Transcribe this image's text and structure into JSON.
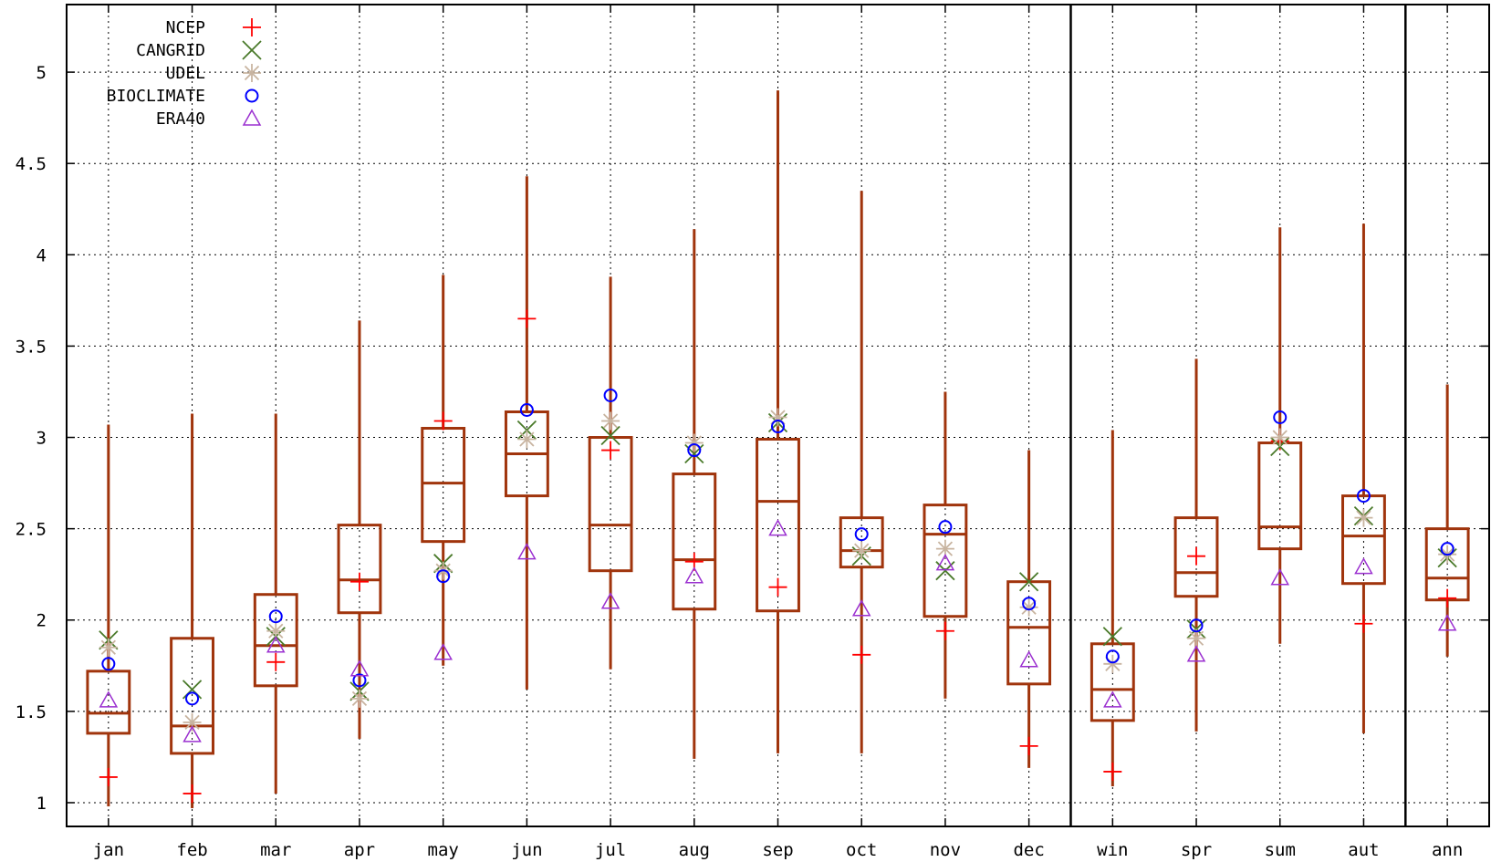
{
  "chart_data": {
    "type": "boxplot",
    "categories": [
      "jan",
      "feb",
      "mar",
      "apr",
      "may",
      "jun",
      "jul",
      "aug",
      "sep",
      "oct",
      "nov",
      "dec",
      "win",
      "spr",
      "sum",
      "aut",
      "ann"
    ],
    "separators_after": [
      "dec",
      "aut"
    ],
    "ylim": [
      0.87,
      5.37
    ],
    "yticks": [
      "1",
      "1.5",
      "2",
      "2.5",
      "3",
      "3.5",
      "4",
      "4.5",
      "5"
    ],
    "grid": true,
    "legend_position": "top-left",
    "box_color": "#a0340c",
    "boxes": [
      {
        "min": 0.98,
        "q1": 1.38,
        "median": 1.49,
        "q3": 1.72,
        "max": 3.07
      },
      {
        "min": 0.97,
        "q1": 1.27,
        "median": 1.42,
        "q3": 1.9,
        "max": 3.13
      },
      {
        "min": 1.05,
        "q1": 1.64,
        "median": 1.86,
        "q3": 2.14,
        "max": 3.13
      },
      {
        "min": 1.35,
        "q1": 2.04,
        "median": 2.22,
        "q3": 2.52,
        "max": 3.64
      },
      {
        "min": 1.75,
        "q1": 2.43,
        "median": 2.75,
        "q3": 3.05,
        "max": 3.89
      },
      {
        "min": 1.62,
        "q1": 2.68,
        "median": 2.91,
        "q3": 3.14,
        "max": 4.43
      },
      {
        "min": 1.73,
        "q1": 2.27,
        "median": 2.52,
        "q3": 3.0,
        "max": 3.88
      },
      {
        "min": 1.24,
        "q1": 2.06,
        "median": 2.33,
        "q3": 2.8,
        "max": 4.14
      },
      {
        "min": 1.27,
        "q1": 2.05,
        "median": 2.65,
        "q3": 2.99,
        "max": 4.9
      },
      {
        "min": 1.27,
        "q1": 2.29,
        "median": 2.38,
        "q3": 2.56,
        "max": 4.35
      },
      {
        "min": 1.57,
        "q1": 2.02,
        "median": 2.47,
        "q3": 2.63,
        "max": 3.25
      },
      {
        "min": 1.19,
        "q1": 1.65,
        "median": 1.96,
        "q3": 2.21,
        "max": 2.93
      },
      {
        "min": 1.09,
        "q1": 1.45,
        "median": 1.62,
        "q3": 1.87,
        "max": 3.04
      },
      {
        "min": 1.39,
        "q1": 2.13,
        "median": 2.26,
        "q3": 2.56,
        "max": 3.43
      },
      {
        "min": 1.87,
        "q1": 2.39,
        "median": 2.51,
        "q3": 2.97,
        "max": 4.15
      },
      {
        "min": 1.38,
        "q1": 2.2,
        "median": 2.46,
        "q3": 2.68,
        "max": 4.17
      },
      {
        "min": 1.8,
        "q1": 2.11,
        "median": 2.23,
        "q3": 2.5,
        "max": 3.29
      }
    ],
    "series": [
      {
        "name": "NCEP",
        "marker": "plus",
        "color": "#ff0000",
        "values": [
          1.14,
          1.05,
          1.77,
          2.21,
          3.09,
          3.65,
          2.93,
          2.32,
          2.18,
          1.81,
          1.94,
          1.31,
          1.17,
          2.35,
          2.98,
          1.98,
          2.12
        ]
      },
      {
        "name": "CANGRID",
        "marker": "cross",
        "color": "#4a7a2a",
        "values": [
          1.89,
          1.62,
          1.91,
          1.61,
          2.31,
          3.04,
          3.01,
          2.91,
          3.08,
          2.35,
          2.27,
          2.21,
          1.91,
          1.95,
          2.95,
          2.57,
          2.34
        ]
      },
      {
        "name": "UDEL",
        "marker": "star",
        "color": "#c8b4a0",
        "values": [
          1.85,
          1.44,
          1.94,
          1.57,
          2.27,
          2.99,
          3.09,
          2.97,
          3.11,
          2.38,
          2.39,
          2.07,
          1.76,
          1.9,
          3.0,
          2.56,
          2.36
        ]
      },
      {
        "name": "BIOCLIMATE",
        "marker": "circle",
        "color": "#0000ff",
        "values": [
          1.76,
          1.57,
          2.02,
          1.67,
          2.24,
          3.15,
          3.23,
          2.93,
          3.06,
          2.47,
          2.51,
          2.09,
          1.8,
          1.97,
          3.11,
          2.68,
          2.39
        ]
      },
      {
        "name": "ERA40",
        "marker": "triangle",
        "color": "#9b30d0",
        "values": [
          1.56,
          1.37,
          1.86,
          1.73,
          1.82,
          2.37,
          2.1,
          2.24,
          2.5,
          2.06,
          2.31,
          1.78,
          1.56,
          1.81,
          2.23,
          2.29,
          1.98
        ]
      }
    ]
  }
}
